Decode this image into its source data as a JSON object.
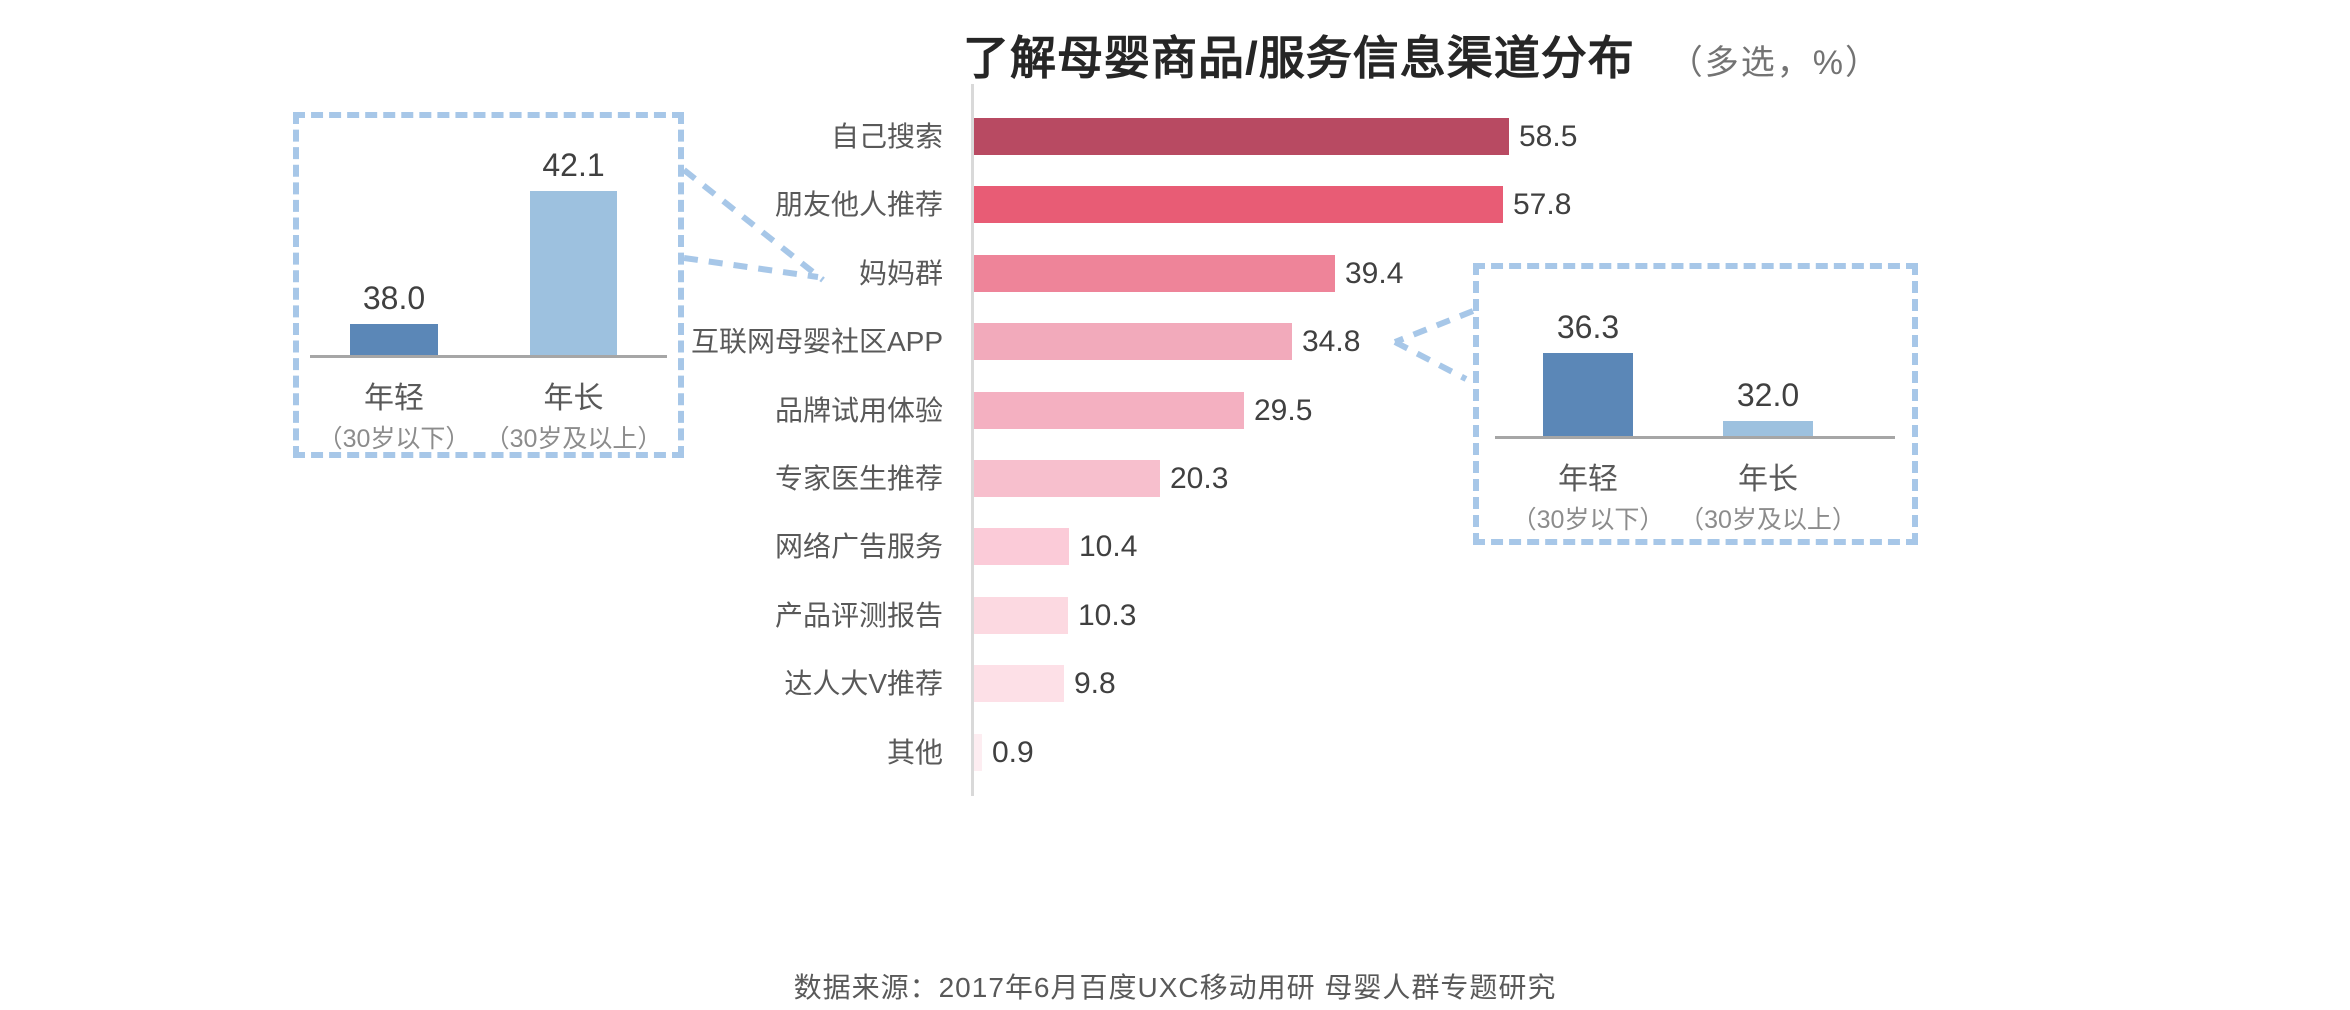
{
  "title": {
    "text": "了解母婴商品/服务信息渠道分布",
    "note": "（多选，%）"
  },
  "colors": {
    "callout_blue": "#a7c7e8",
    "axis_gray_main": "#d9d9d9",
    "axis_gray_inset": "#a6a6a6",
    "young_bar_blue": "#5b87b7",
    "old_bar_blue": "#9dc1df"
  },
  "chart_data": [
    {
      "id": "main-channel-distribution",
      "type": "bar",
      "orientation": "horizontal",
      "title": "了解母婴商品/服务信息渠道分布",
      "subtitle": "（多选，%）",
      "unit": "%",
      "multi_select": true,
      "xlim": [
        0,
        60
      ],
      "grid": false,
      "legend": "none",
      "categories": [
        "自己搜索",
        "朋友他人推荐",
        "妈妈群",
        "互联网母婴社区APP",
        "品牌试用体验",
        "专家医生推荐",
        "网络广告服务",
        "产品评测报告",
        "达人大V推荐",
        "其他"
      ],
      "values": [
        58.5,
        57.8,
        39.4,
        34.8,
        29.5,
        20.3,
        10.4,
        10.3,
        9.8,
        0.9
      ],
      "bar_colors": [
        "#b84a62",
        "#e85c75",
        "#ee8499",
        "#f2aabb",
        "#f4b0c1",
        "#f7bfcd",
        "#fbcbd8",
        "#fcd9e1",
        "#fde0e7",
        "#fdedf1"
      ]
    },
    {
      "id": "inset-mama-group-by-age",
      "type": "bar",
      "orientation": "vertical",
      "callout_target": "妈妈群",
      "categories": [
        "年轻",
        "年长"
      ],
      "category_notes": [
        "（30岁以下）",
        "（30岁及以上）"
      ],
      "values": [
        38.0,
        42.1
      ],
      "bar_colors": [
        "#5b87b7",
        "#9dc1df"
      ]
    },
    {
      "id": "inset-community-app-by-age",
      "type": "bar",
      "orientation": "vertical",
      "callout_target": "互联网母婴社区APP",
      "categories": [
        "年轻",
        "年长"
      ],
      "category_notes": [
        "（30岁以下）",
        "（30岁及以上）"
      ],
      "values": [
        36.3,
        32.0
      ],
      "bar_colors": [
        "#5b87b7",
        "#9dc1df"
      ]
    }
  ],
  "footer": {
    "source": "数据来源：2017年6月百度UXC移动用研 母婴人群专题研究"
  }
}
